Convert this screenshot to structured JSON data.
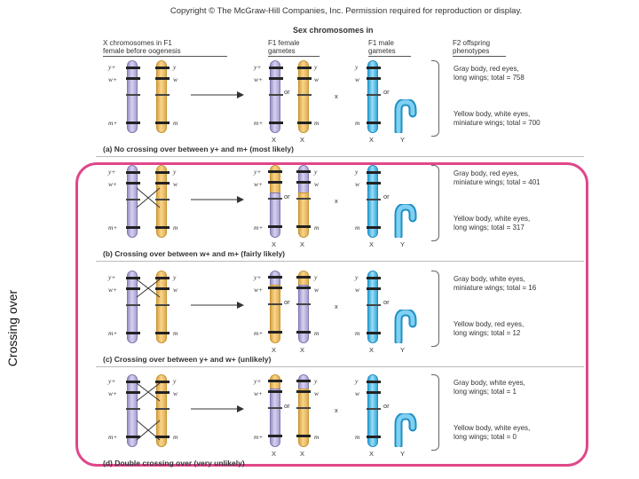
{
  "copyright": "Copyright © The McGraw-Hill Companies, Inc. Permission required for reproduction or display.",
  "headers": {
    "sex_chromosomes": "Sex chromosomes in",
    "col1": [
      "X chromosomes in F1",
      "female before oogenesis"
    ],
    "col2": [
      "F1 female",
      "gametes"
    ],
    "col3": [
      "F1 male",
      "gametes"
    ],
    "col4": [
      "F2 offspring",
      "phenotypes"
    ]
  },
  "side_label": "Crossing over",
  "labels": {
    "y_plus": "y+",
    "y": "y",
    "w_plus": "w+",
    "w": "w",
    "m_plus": "m+",
    "m": "m",
    "or": "or",
    "x": "x",
    "X": "X",
    "Y": "Y"
  },
  "panels": [
    {
      "caption": "(a) No crossing over between y+ and m+ (most likely)",
      "phenotype_top": [
        "Gray body, red eyes,",
        "long wings; total = 758"
      ],
      "phenotype_bottom": [
        "Yellow body, white eyes,",
        "miniature wings; total = 700"
      ]
    },
    {
      "caption": "(b) Crossing over between w+ and m+ (fairly likely)",
      "phenotype_top": [
        "Gray body, red eyes,",
        "miniature wings; total = 401"
      ],
      "phenotype_bottom": [
        "Yellow body, white eyes,",
        "long wings; total = 317"
      ]
    },
    {
      "caption": "(c) Crossing over between y+ and w+ (unlikely)",
      "phenotype_top": [
        "Gray body, white eyes,",
        "miniature wings; total = 16"
      ],
      "phenotype_bottom": [
        "Yellow body, red eyes,",
        "long wings; total = 12"
      ]
    },
    {
      "caption": "(d) Double crossing over (very unlikely)",
      "phenotype_top": [
        "Gray body, white eyes,",
        "long wings; total = 1"
      ],
      "phenotype_bottom": [
        "Yellow body, white eyes,",
        "long wings; total = 0"
      ]
    }
  ],
  "colors": {
    "frame": "#e0478a",
    "x_parental_1": "#c9c2ea",
    "x_parental_2": "#f3c36e",
    "y_chromosome": "#5cc4ee"
  }
}
